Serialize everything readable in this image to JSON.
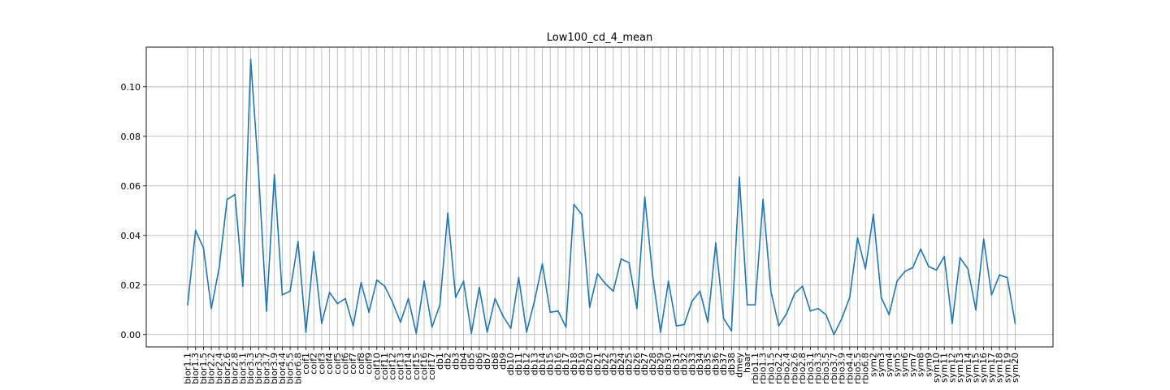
{
  "chart_data": {
    "type": "line",
    "title": "Low100_cd_4_mean",
    "xlabel": "",
    "ylabel": "",
    "grid": true,
    "legend": "none",
    "ylim": [
      -0.005,
      0.116
    ],
    "yticks": [
      0.0,
      0.02,
      0.04,
      0.06,
      0.08,
      0.1
    ],
    "ytick_labels": [
      "0.00",
      "0.02",
      "0.04",
      "0.06",
      "0.08",
      "0.10"
    ],
    "line_color": "#1f77b4",
    "categories": [
      "bior1.1",
      "bior1.3",
      "bior1.5",
      "bior2.2",
      "bior2.4",
      "bior2.6",
      "bior2.8",
      "bior3.1",
      "bior3.3",
      "bior3.5",
      "bior3.7",
      "bior3.9",
      "bior4.4",
      "bior5.5",
      "bior6.8",
      "coif1",
      "coif2",
      "coif3",
      "coif4",
      "coif5",
      "coif6",
      "coif7",
      "coif8",
      "coif9",
      "coif10",
      "coif11",
      "coif12",
      "coif13",
      "coif14",
      "coif15",
      "coif16",
      "coif17",
      "db1",
      "db2",
      "db3",
      "db4",
      "db5",
      "db6",
      "db7",
      "db8",
      "db9",
      "db10",
      "db11",
      "db12",
      "db13",
      "db14",
      "db15",
      "db16",
      "db17",
      "db18",
      "db19",
      "db20",
      "db21",
      "db22",
      "db23",
      "db24",
      "db25",
      "db26",
      "db27",
      "db28",
      "db29",
      "db30",
      "db31",
      "db32",
      "db33",
      "db34",
      "db35",
      "db36",
      "db37",
      "db38",
      "dmey",
      "haar",
      "rbio1.1",
      "rbio1.3",
      "rbio1.5",
      "rbio2.2",
      "rbio2.4",
      "rbio2.6",
      "rbio2.8",
      "rbio3.1",
      "rbio3.3",
      "rbio3.5",
      "rbio3.7",
      "rbio3.9",
      "rbio4.4",
      "rbio5.5",
      "rbio6.8",
      "sym2",
      "sym3",
      "sym4",
      "sym5",
      "sym6",
      "sym7",
      "sym8",
      "sym9",
      "sym10",
      "sym11",
      "sym12",
      "sym13",
      "sym14",
      "sym15",
      "sym16",
      "sym17",
      "sym18",
      "sym19",
      "sym20"
    ],
    "values": [
      0.012,
      0.042,
      0.035,
      0.0105,
      0.027,
      0.0545,
      0.0565,
      0.0195,
      0.111,
      0.065,
      0.0095,
      0.0645,
      0.016,
      0.0175,
      0.0375,
      0.001,
      0.0335,
      0.0045,
      0.017,
      0.0125,
      0.0145,
      0.0035,
      0.021,
      0.009,
      0.022,
      0.0195,
      0.013,
      0.005,
      0.0145,
      0.0005,
      0.0215,
      0.003,
      0.012,
      0.049,
      0.015,
      0.0215,
      0.0005,
      0.019,
      0.001,
      0.0145,
      0.0075,
      0.0025,
      0.023,
      0.001,
      0.0135,
      0.0285,
      0.009,
      0.0095,
      0.003,
      0.0525,
      0.0485,
      0.011,
      0.0245,
      0.0205,
      0.0175,
      0.0305,
      0.029,
      0.0105,
      0.0555,
      0.0235,
      0.001,
      0.0215,
      0.0035,
      0.004,
      0.0135,
      0.0175,
      0.005,
      0.037,
      0.0065,
      0.0015,
      0.0635,
      0.012,
      0.012,
      0.0545,
      0.0175,
      0.0035,
      0.0085,
      0.0165,
      0.0195,
      0.0095,
      0.0105,
      0.008,
      0.0,
      0.0065,
      0.015,
      0.039,
      0.0265,
      0.0485,
      0.015,
      0.008,
      0.0215,
      0.0255,
      0.027,
      0.0345,
      0.0275,
      0.026,
      0.0315,
      0.0045,
      0.031,
      0.0265,
      0.01,
      0.0385,
      0.016,
      0.024,
      0.023,
      0.0045
    ]
  }
}
